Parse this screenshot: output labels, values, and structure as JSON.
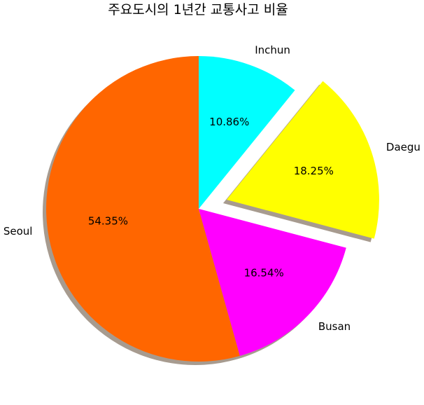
{
  "chart_data": {
    "type": "pie",
    "title": "주요도시의 1년간 교통사고 비율",
    "categories": [
      "Seoul",
      "Busan",
      "Daegu",
      "Inchun"
    ],
    "values": [
      54.35,
      16.54,
      18.25,
      10.86
    ],
    "value_labels": [
      "54.35%",
      "16.54%",
      "18.25%",
      "10.86%"
    ],
    "colors": [
      "#ff6600",
      "#ff00ff",
      "#ffff00",
      "#00ffff"
    ],
    "exploded": [
      "Daegu"
    ],
    "shadow": true,
    "start_angle": 90,
    "direction": "counterclockwise"
  }
}
